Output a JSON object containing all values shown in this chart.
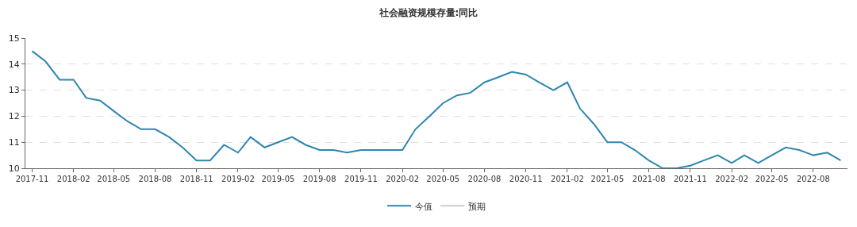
{
  "chart_data": {
    "type": "line",
    "title": "社会融资规模存量:同比",
    "x": [
      "2017-11",
      "2017-12",
      "2018-01",
      "2018-02",
      "2018-03",
      "2018-04",
      "2018-05",
      "2018-06",
      "2018-07",
      "2018-08",
      "2018-09",
      "2018-10",
      "2018-11",
      "2018-12",
      "2019-01",
      "2019-02",
      "2019-03",
      "2019-04",
      "2019-05",
      "2019-06",
      "2019-07",
      "2019-08",
      "2019-09",
      "2019-10",
      "2019-11",
      "2019-12",
      "2020-01",
      "2020-02",
      "2020-03",
      "2020-04",
      "2020-05",
      "2020-06",
      "2020-07",
      "2020-08",
      "2020-09",
      "2020-10",
      "2020-11",
      "2020-12",
      "2021-01",
      "2021-02",
      "2021-03",
      "2021-04",
      "2021-05",
      "2021-06",
      "2021-07",
      "2021-08",
      "2021-09",
      "2021-10",
      "2021-11",
      "2021-12",
      "2022-01",
      "2022-02",
      "2022-03",
      "2022-04",
      "2022-05",
      "2022-06",
      "2022-07",
      "2022-08",
      "2022-09",
      "2022-10"
    ],
    "series": [
      {
        "name": "今值",
        "color": "#2e86b0",
        "values": [
          14.5,
          14.1,
          13.4,
          13.4,
          12.7,
          12.6,
          12.2,
          11.8,
          11.5,
          11.5,
          11.2,
          10.8,
          10.3,
          10.3,
          10.9,
          10.6,
          11.2,
          10.8,
          11.0,
          11.2,
          10.9,
          10.7,
          10.7,
          10.6,
          10.7,
          10.7,
          10.7,
          10.7,
          11.5,
          12.0,
          12.5,
          12.8,
          12.9,
          13.3,
          13.5,
          13.7,
          13.6,
          13.3,
          13.0,
          13.3,
          12.3,
          11.7,
          11.0,
          11.0,
          10.7,
          10.3,
          10.0,
          10.0,
          10.1,
          10.3,
          10.5,
          10.2,
          10.5,
          10.2,
          10.5,
          10.8,
          10.7,
          10.5,
          10.6,
          10.3
        ]
      },
      {
        "name": "预期",
        "color": "#cccccc",
        "values": [
          null,
          null,
          null,
          null,
          null,
          null,
          null,
          null,
          null,
          null,
          null,
          null,
          null,
          null,
          null,
          null,
          null,
          null,
          null,
          null,
          null,
          null,
          null,
          null,
          null,
          null,
          null,
          null,
          null,
          null,
          null,
          null,
          null,
          null,
          null,
          null,
          null,
          null,
          null,
          null,
          null,
          null,
          null,
          null,
          null,
          null,
          null,
          null,
          null,
          null,
          null,
          null,
          null,
          null,
          null,
          null,
          null,
          null,
          null,
          null
        ]
      }
    ],
    "xlim": [
      "2017-10-17",
      "2022-10-16"
    ],
    "xticks": [
      {
        "value": "2017-11",
        "label": "2017-11"
      },
      {
        "value": "2018-02",
        "label": "2018-02"
      },
      {
        "value": "2018-05",
        "label": "2018-05"
      },
      {
        "value": "2018-08",
        "label": "2018-08"
      },
      {
        "value": "2018-11",
        "label": "2018-11"
      },
      {
        "value": "2019-02",
        "label": "2019-02"
      },
      {
        "value": "2019-05",
        "label": "2019-05"
      },
      {
        "value": "2019-08",
        "label": "2019-08"
      },
      {
        "value": "2019-11",
        "label": "2019-11"
      },
      {
        "value": "2020-02",
        "label": "2020-02"
      },
      {
        "value": "2020-05",
        "label": "2020-05"
      },
      {
        "value": "2020-08",
        "label": "2020-08"
      },
      {
        "value": "2020-11",
        "label": "2020-11"
      },
      {
        "value": "2021-02",
        "label": "2021-02"
      },
      {
        "value": "2021-05",
        "label": "2021-05"
      },
      {
        "value": "2021-08",
        "label": "2021-08"
      },
      {
        "value": "2021-11",
        "label": "2021-11"
      },
      {
        "value": "2022-02",
        "label": "2022-02"
      },
      {
        "value": "2022-05",
        "label": "2022-05"
      },
      {
        "value": "2022-08",
        "label": "2022-08"
      }
    ],
    "ylim": [
      10,
      15
    ],
    "yticks": [
      10,
      11,
      12,
      13,
      14,
      15
    ],
    "grid": "y",
    "legend": "bottom",
    "line_style": "solid"
  }
}
